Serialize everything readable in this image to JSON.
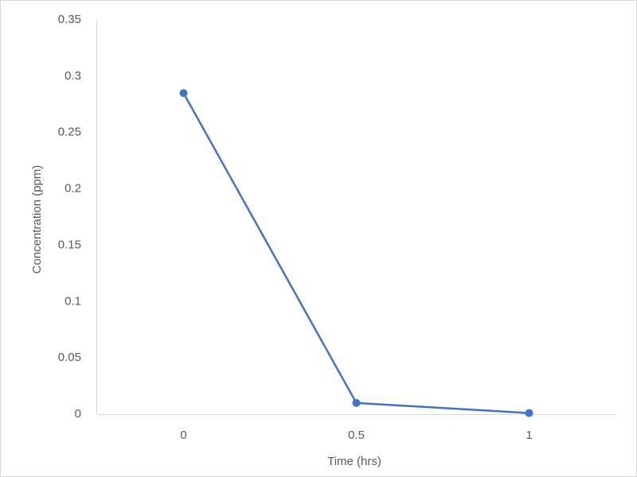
{
  "chart_data": {
    "type": "line",
    "x_label": "Time (hrs)",
    "y_label": "Concentration (ppm)",
    "categories": [
      "0",
      "0.5",
      "1"
    ],
    "series": [
      {
        "name": "Concentration",
        "color": "#4472c4",
        "values": [
          0.285,
          0.01,
          0.001
        ]
      }
    ],
    "ylim": [
      0,
      0.35
    ],
    "yticks": [
      0,
      0.05,
      0.1,
      0.15,
      0.2,
      0.25,
      0.3,
      0.35
    ],
    "grid": false
  }
}
